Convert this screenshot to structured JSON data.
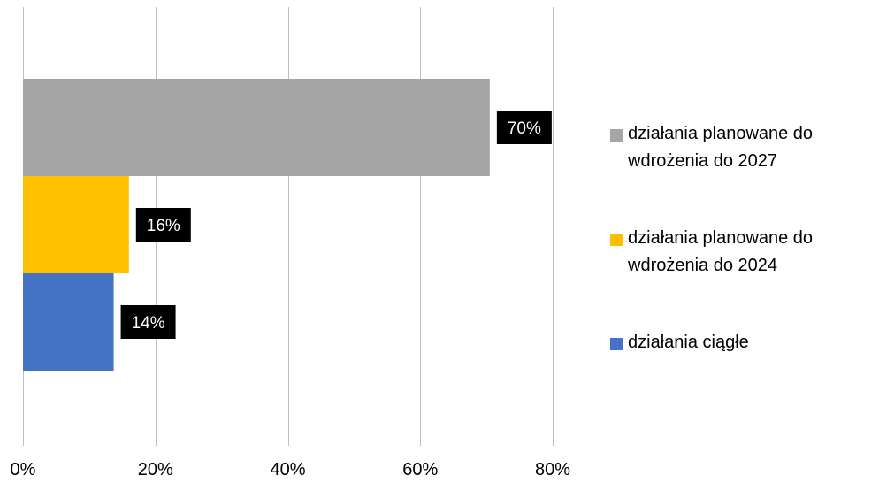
{
  "chart_data": {
    "type": "bar",
    "orientation": "horizontal",
    "categories": [
      "działania planowane do wdrożenia do 2027",
      "działania planowane do wdrożenia do 2024",
      "działania ciągłe"
    ],
    "series": [
      {
        "name": "działania planowane do wdrożenia do 2027",
        "value": 0.705,
        "label": "70%",
        "color": "#A5A5A5"
      },
      {
        "name": "działania planowane do wdrożenia do 2024",
        "value": 0.16,
        "label": "16%",
        "color": "#FFC000"
      },
      {
        "name": "działania ciągłe",
        "value": 0.137,
        "label": "14%",
        "color": "#4472C4"
      }
    ],
    "xlim": [
      0,
      0.8
    ],
    "x_ticks": [
      {
        "value": 0,
        "label": "0%"
      },
      {
        "value": 0.2,
        "label": "20%"
      },
      {
        "value": 0.4,
        "label": "40%"
      },
      {
        "value": 0.6,
        "label": "60%"
      },
      {
        "value": 0.8,
        "label": "80%"
      }
    ],
    "grid": true,
    "legend_position": "right",
    "data_label_style": {
      "background": "#000000",
      "text_color": "#FFFFFF"
    }
  }
}
